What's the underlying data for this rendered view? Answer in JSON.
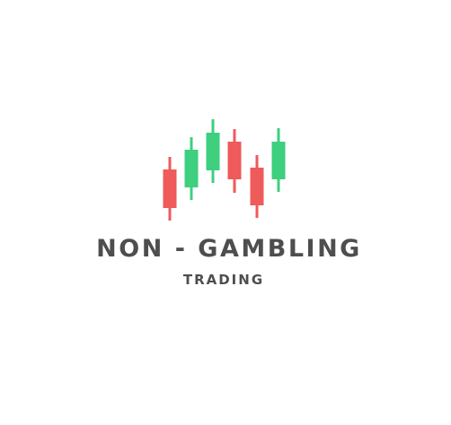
{
  "logo": {
    "name": "NON - GAMBLING",
    "tagline": "TRADING",
    "icon": "candlestick-chart-icon",
    "colors": {
      "bullish": "#3ecf7f",
      "bearish": "#ef5a5a",
      "text": "#4e4e4e",
      "background": "#ffffff"
    }
  }
}
